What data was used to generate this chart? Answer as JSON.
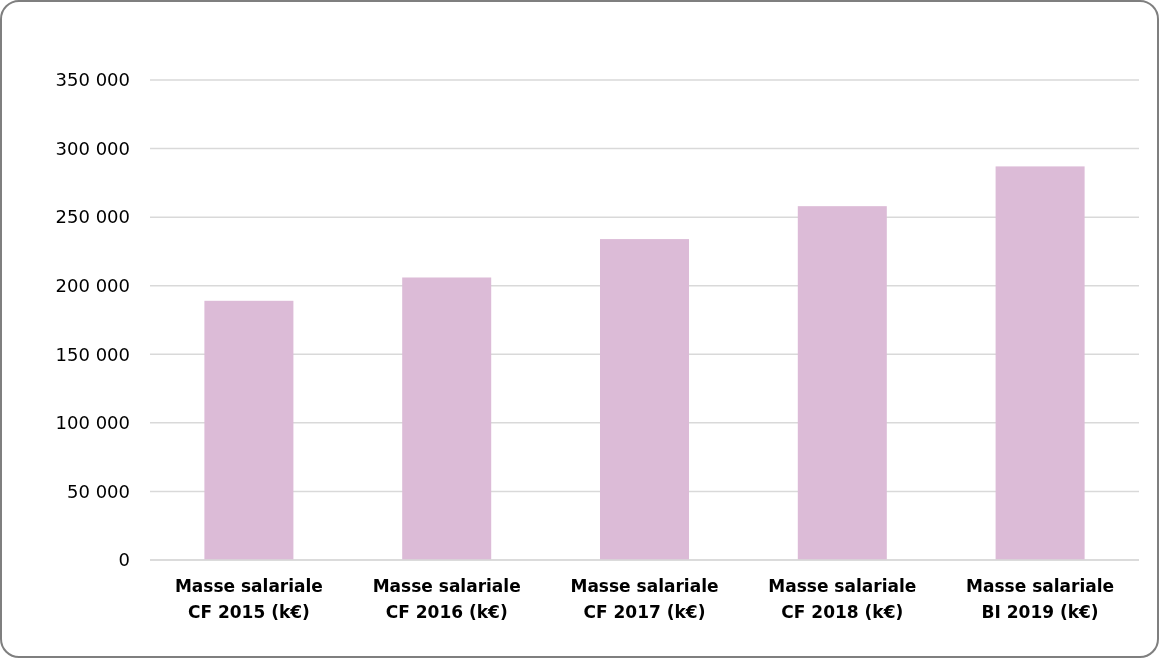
{
  "chart_data": {
    "type": "bar",
    "categories": [
      "Masse salariale CF 2015 (k€)",
      "Masse salariale CF 2016 (k€)",
      "Masse salariale CF 2017 (k€)",
      "Masse salariale CF 2018 (k€)",
      "Masse salariale BI 2019 (k€)"
    ],
    "values": [
      189000,
      206000,
      234000,
      258000,
      287000
    ],
    "color": "#dcbbd7",
    "ylim": [
      0,
      350000
    ],
    "yticks": [
      {
        "value": 0,
        "label": "0"
      },
      {
        "value": 50000,
        "label": "50 000"
      },
      {
        "value": 100000,
        "label": "100 000"
      },
      {
        "value": 150000,
        "label": "150 000"
      },
      {
        "value": 200000,
        "label": "200 000"
      },
      {
        "value": 250000,
        "label": "250 000"
      },
      {
        "value": 300000,
        "label": "300 000"
      },
      {
        "value": 350000,
        "label": "350 000"
      }
    ],
    "grid": "y"
  }
}
